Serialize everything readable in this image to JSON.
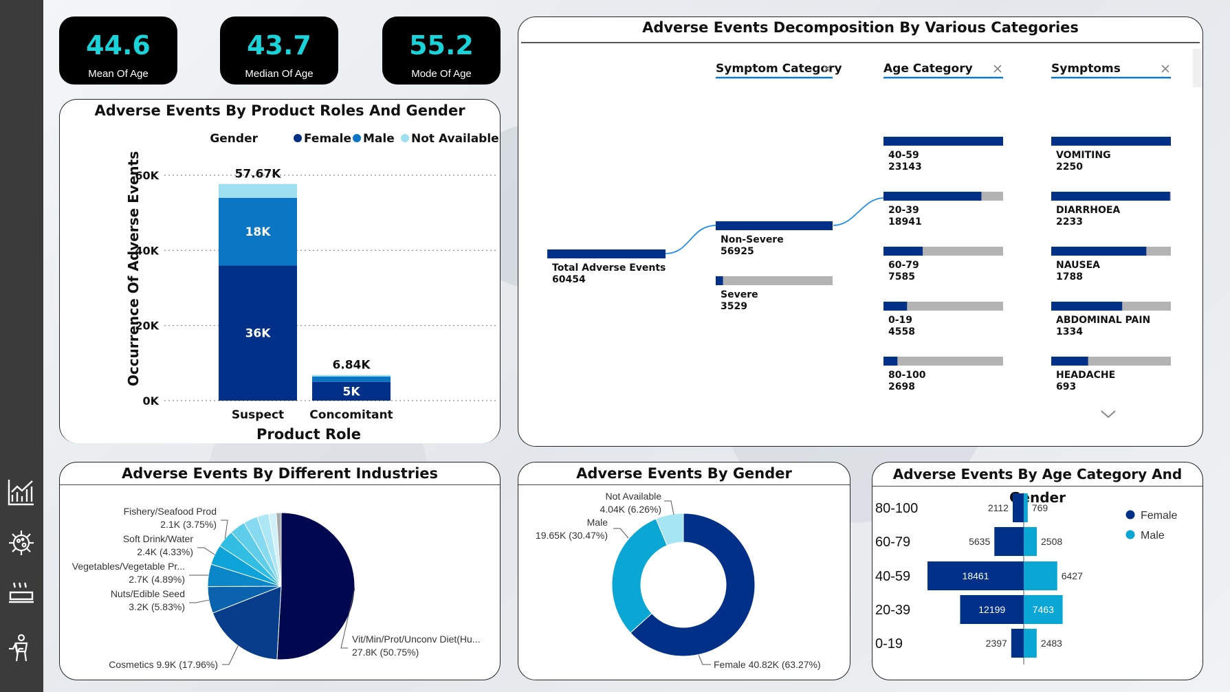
{
  "kpis": [
    {
      "value": "44.6",
      "label": "Mean Of Age"
    },
    {
      "value": "43.7",
      "label": "Median Of Age"
    },
    {
      "value": "55.2",
      "label": "Mode Of Age"
    }
  ],
  "sidebar": {
    "icons": [
      "line-chart-icon",
      "virus-icon",
      "food-tray-icon",
      "person-health-icon"
    ]
  },
  "colors": {
    "female": "#003087",
    "male": "#0a76c4",
    "not_available": "#9ee0f0",
    "accent_teal": "#19d3d9",
    "tree_bar": "#003087",
    "tree_track": "#b3b3b3"
  },
  "product_roles": {
    "title": "Adverse Events By Product Roles And Gender",
    "legend_title": "Gender",
    "chart_data": {
      "type": "bar",
      "stacked": true,
      "title": "Adverse Events By Product Roles And Gender",
      "xlabel": "Product Role",
      "ylabel": "Occurrence Of Adverse Events",
      "categories": [
        "Suspect",
        "Concomitant"
      ],
      "ylim": [
        0,
        60000
      ],
      "yticks": [
        0,
        20000,
        40000,
        60000
      ],
      "ytick_labels": [
        "0K",
        "20K",
        "40K",
        "60K"
      ],
      "legend": "top",
      "grid": true,
      "series": [
        {
          "name": "Female",
          "values": [
            36000,
            5000
          ],
          "labels": [
            "36K",
            "5K"
          ]
        },
        {
          "name": "Male",
          "values": [
            18000,
            1440
          ],
          "labels": [
            "18K",
            ""
          ]
        },
        {
          "name": "Not Available",
          "values": [
            3670,
            400
          ],
          "labels": [
            "",
            ""
          ]
        }
      ],
      "totals": [
        "57.67K",
        "6.84K"
      ]
    }
  },
  "decomposition": {
    "title": "Adverse Events Decomposition By Various Categories",
    "levels": [
      "Symptom Category",
      "Age Category",
      "Symptoms"
    ],
    "root": {
      "label": "Total Adverse Events",
      "value": "60454",
      "num": 60454
    },
    "symptom_category": [
      {
        "label": "Non-Severe",
        "value": "56925",
        "num": 56925
      },
      {
        "label": "Severe",
        "value": "3529",
        "num": 3529
      }
    ],
    "age_category": [
      {
        "label": "40-59",
        "value": "23143",
        "num": 23143
      },
      {
        "label": "20-39",
        "value": "18941",
        "num": 18941
      },
      {
        "label": "60-79",
        "value": "7585",
        "num": 7585
      },
      {
        "label": "0-19",
        "value": "4558",
        "num": 4558
      },
      {
        "label": "80-100",
        "value": "2698",
        "num": 2698
      }
    ],
    "symptoms": [
      {
        "label": "VOMITING",
        "value": "2250",
        "num": 2250
      },
      {
        "label": "DIARRHOEA",
        "value": "2233",
        "num": 2233
      },
      {
        "label": "NAUSEA",
        "value": "1788",
        "num": 1788
      },
      {
        "label": "ABDOMINAL PAIN",
        "value": "1334",
        "num": 1334
      },
      {
        "label": "HEADACHE",
        "value": "693",
        "num": 693
      }
    ]
  },
  "industries": {
    "title": "Adverse Events By Different Industries",
    "chart_data": {
      "type": "pie",
      "slices": [
        {
          "name": "Vit/Min/Prot/Unconv Diet(Hu...",
          "value": 27800,
          "pct": 50.75,
          "label": "27.8K (50.75%)",
          "color": "#01084f"
        },
        {
          "name": "Cosmetics",
          "value": 9900,
          "pct": 17.96,
          "label": "9.9K (17.96%)",
          "color": "#083d8c"
        },
        {
          "name": "Nuts/Edible Seed",
          "value": 3200,
          "pct": 5.83,
          "label": "3.2K (5.83%)",
          "color": "#0b63ad"
        },
        {
          "name": "Vegetables/Vegetable Pr...",
          "value": 2700,
          "pct": 4.89,
          "label": "2.7K (4.89%)",
          "color": "#0a86c9"
        },
        {
          "name": "Soft Drink/Water",
          "value": 2400,
          "pct": 4.33,
          "label": "2.4K (4.33%)",
          "color": "#0ea3d9"
        },
        {
          "name": "Fishery/Seafood Prod",
          "value": 2100,
          "pct": 3.75,
          "label": "2.1K (3.75%)",
          "color": "#32bde3"
        },
        {
          "name": "",
          "value": 1900,
          "pct": 3.5,
          "label": "",
          "color": "#5dcdea"
        },
        {
          "name": "",
          "value": 1700,
          "pct": 3.1,
          "label": "",
          "color": "#86daef"
        },
        {
          "name": "",
          "value": 1400,
          "pct": 2.5,
          "label": "",
          "color": "#ade6f4"
        },
        {
          "name": "",
          "value": 900,
          "pct": 1.6,
          "label": "",
          "color": "#d1f1f9"
        },
        {
          "name": "",
          "value": 600,
          "pct": 1.1,
          "label": "",
          "color": "#a9abad"
        }
      ]
    }
  },
  "gender": {
    "title": "Adverse Events By Gender",
    "chart_data": {
      "type": "pie",
      "donut": true,
      "slices": [
        {
          "name": "Female",
          "value": 40820,
          "pct": 63.27,
          "label": "40.82K (63.27%)",
          "color": "#003087"
        },
        {
          "name": "Male",
          "value": 19650,
          "pct": 30.47,
          "label": "19.65K (30.47%)",
          "color": "#0aa7d4"
        },
        {
          "name": "Not Available",
          "value": 4040,
          "pct": 6.26,
          "label": "4.04K (6.26%)",
          "color": "#a6e6f4"
        }
      ]
    }
  },
  "age_gender": {
    "title": "Adverse Events By Age Category And Gender",
    "chart_data": {
      "type": "bar",
      "orientation": "horizontal",
      "diverging": true,
      "categories": [
        "80-100",
        "60-79",
        "40-59",
        "20-39",
        "0-19"
      ],
      "series": [
        {
          "name": "Female",
          "values": [
            2112,
            5635,
            18461,
            12199,
            2397
          ],
          "color": "#003087"
        },
        {
          "name": "Male",
          "values": [
            769,
            2508,
            6427,
            7463,
            2483
          ],
          "color": "#0aa7d4"
        }
      ],
      "legend": "right"
    }
  }
}
